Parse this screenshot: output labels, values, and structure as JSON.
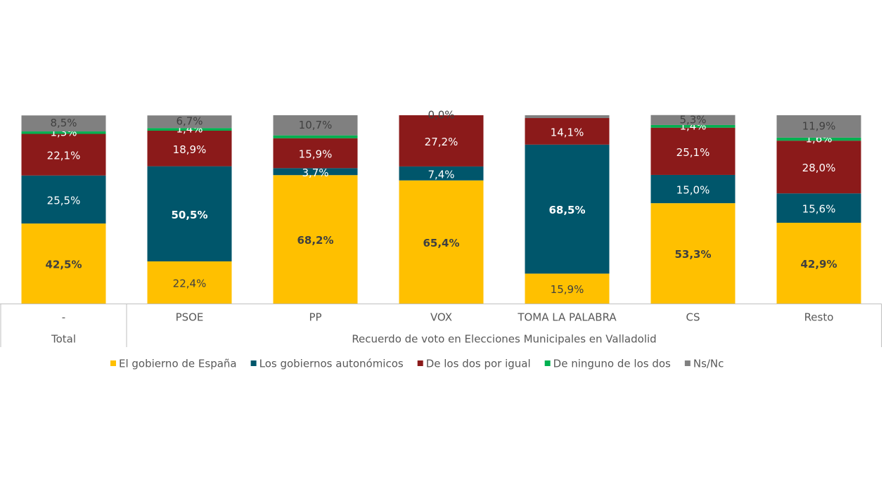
{
  "chart_data": {
    "type": "stacked-bar",
    "categories": [
      "-",
      "PSOE",
      "PP",
      "VOX",
      "TOMA LA PALABRA",
      "CS",
      "Resto"
    ],
    "groups": [
      {
        "label": "Total",
        "span": 1
      },
      {
        "label": "Recuerdo de voto en Elecciones Municipales en Valladolid",
        "span": 6
      }
    ],
    "ylim": [
      0,
      100
    ],
    "series": [
      {
        "name": "El gobierno de España",
        "color": "#ffc000",
        "values": [
          42.5,
          22.4,
          68.2,
          65.4,
          15.9,
          53.3,
          42.9
        ],
        "value_labels": [
          "42,5%",
          "22,4%",
          "68,2%",
          "65,4%",
          "15,9%",
          "53,3%",
          "42,9%"
        ]
      },
      {
        "name": "Los gobiernos autonómicos",
        "color": "#00566b",
        "values": [
          25.5,
          50.5,
          3.7,
          7.4,
          68.5,
          15.0,
          15.6
        ],
        "value_labels": [
          "25,5%",
          "50,5%",
          "3,7%",
          "7,4%",
          "68,5%",
          "15,0%",
          "15,6%"
        ]
      },
      {
        "name": "De los dos por igual",
        "color": "#8b1a1a",
        "values": [
          22.1,
          18.9,
          15.9,
          27.2,
          14.1,
          25.1,
          28.0
        ],
        "value_labels": [
          "22,1%",
          "18,9%",
          "15,9%",
          "27,2%",
          "14,1%",
          "25,1%",
          "28,0%"
        ]
      },
      {
        "name": "De ninguno de los dos",
        "color": "#00b050",
        "values": [
          1.3,
          1.4,
          1.5,
          0.0,
          0.0,
          1.4,
          1.6
        ],
        "value_labels": [
          "1,3%",
          "1,4%",
          null,
          null,
          null,
          "1,4%",
          "1,6%"
        ]
      },
      {
        "name": "Ns/Nc",
        "color": "#808080",
        "values": [
          8.5,
          6.7,
          10.7,
          0.0,
          1.5,
          5.3,
          11.9
        ],
        "value_labels": [
          "8,5%",
          "6,7%",
          "10,7%",
          "0,0%",
          null,
          "5,3%",
          "11,9%"
        ]
      }
    ]
  }
}
